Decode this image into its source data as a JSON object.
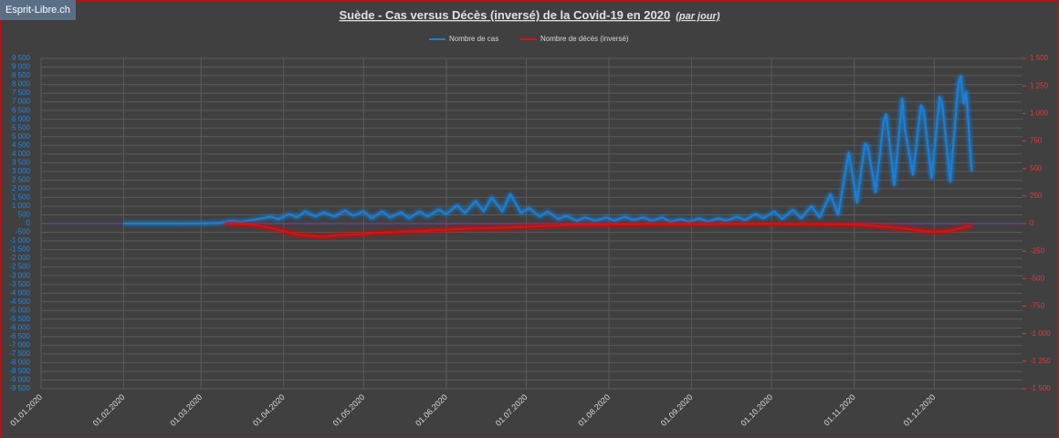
{
  "watermark": "Esprit-Libre.ch",
  "chart_data": {
    "type": "line",
    "title": "Suède - Cas versus Décès (inversé) de la Covid-19 en 2020",
    "subtitle": "(par jour)",
    "grid": true,
    "legend": "top",
    "xlim": [
      "2020-01-01",
      "2020-12-31"
    ],
    "xticks": [
      {
        "value": "2020-01-01",
        "label": "01.01.2020"
      },
      {
        "value": "2020-02-01",
        "label": "01.02.2020"
      },
      {
        "value": "2020-03-01",
        "label": "01.03.2020"
      },
      {
        "value": "2020-04-01",
        "label": "01.04.2020"
      },
      {
        "value": "2020-05-01",
        "label": "01.05.2020"
      },
      {
        "value": "2020-06-01",
        "label": "01.06.2020"
      },
      {
        "value": "2020-07-01",
        "label": "01.07.2020"
      },
      {
        "value": "2020-08-01",
        "label": "01.08.2020"
      },
      {
        "value": "2020-09-01",
        "label": "01.09.2020"
      },
      {
        "value": "2020-10-01",
        "label": "01.10.2020"
      },
      {
        "value": "2020-11-01",
        "label": "01.11.2020"
      },
      {
        "value": "2020-12-01",
        "label": "01.12.2020"
      }
    ],
    "ylim": [
      -9500,
      9500
    ],
    "yticks": [
      {
        "value": -9500,
        "label": "-9 500"
      },
      {
        "value": -9000,
        "label": "-9 000"
      },
      {
        "value": -8500,
        "label": "-8 500"
      },
      {
        "value": -8000,
        "label": "-8 000"
      },
      {
        "value": -7500,
        "label": "-7 500"
      },
      {
        "value": -7000,
        "label": "-7 000"
      },
      {
        "value": -6500,
        "label": "-6 500"
      },
      {
        "value": -6000,
        "label": "-6 000"
      },
      {
        "value": -5500,
        "label": "-5 500"
      },
      {
        "value": -5000,
        "label": "-5 000"
      },
      {
        "value": -4500,
        "label": "-4 500"
      },
      {
        "value": -4000,
        "label": "-4 000"
      },
      {
        "value": -3500,
        "label": "-3 500"
      },
      {
        "value": -3000,
        "label": "-3 000"
      },
      {
        "value": -2500,
        "label": "-2 500"
      },
      {
        "value": -2000,
        "label": "-2 000"
      },
      {
        "value": -1500,
        "label": "-1 500"
      },
      {
        "value": -1000,
        "label": "-1 000"
      },
      -500,
      0,
      500,
      {
        "value": 1000,
        "label": "1 000"
      },
      {
        "value": 1500,
        "label": "1 500"
      },
      {
        "value": 2000,
        "label": "2 000"
      },
      {
        "value": 2500,
        "label": "2 500"
      },
      {
        "value": 3000,
        "label": "3 000"
      },
      {
        "value": 3500,
        "label": "3 500"
      },
      {
        "value": 4000,
        "label": "4 000"
      },
      {
        "value": 4500,
        "label": "4 500"
      },
      {
        "value": 5000,
        "label": "5 000"
      },
      {
        "value": 5500,
        "label": "5 500"
      },
      {
        "value": 6000,
        "label": "6 000"
      },
      {
        "value": 6500,
        "label": "6 500"
      },
      {
        "value": 7000,
        "label": "7 000"
      },
      {
        "value": 7500,
        "label": "7 500"
      },
      {
        "value": 8000,
        "label": "8 000"
      },
      {
        "value": 8500,
        "label": "8 500"
      },
      {
        "value": 9000,
        "label": "9 000"
      },
      {
        "value": 9500,
        "label": "9 500"
      }
    ],
    "y2lim": [
      -1500,
      1500
    ],
    "y2ticks": [
      {
        "value": -1500,
        "label": "-1 500"
      },
      {
        "value": -1250,
        "label": "-1 250"
      },
      {
        "value": -1000,
        "label": "-1 000"
      },
      -750,
      -500,
      -250,
      0,
      250,
      500,
      750,
      {
        "value": 1000,
        "label": "1 000"
      },
      {
        "value": 1250,
        "label": "1 250"
      },
      {
        "value": 1500,
        "label": "1 500"
      }
    ],
    "series": [
      {
        "name": "Nombre de cas",
        "color": "#1a7fd6",
        "x": [
          "2020-02-01",
          "2020-02-20",
          "2020-03-01",
          "2020-03-08",
          "2020-03-12",
          "2020-03-16",
          "2020-03-20",
          "2020-03-24",
          "2020-03-27",
          "2020-03-30",
          "2020-04-03",
          "2020-04-06",
          "2020-04-09",
          "2020-04-13",
          "2020-04-16",
          "2020-04-20",
          "2020-04-24",
          "2020-04-27",
          "2020-05-01",
          "2020-05-04",
          "2020-05-08",
          "2020-05-11",
          "2020-05-15",
          "2020-05-18",
          "2020-05-22",
          "2020-05-25",
          "2020-05-29",
          "2020-06-01",
          "2020-06-05",
          "2020-06-08",
          "2020-06-12",
          "2020-06-15",
          "2020-06-18",
          "2020-06-22",
          "2020-06-25",
          "2020-06-29",
          "2020-07-02",
          "2020-07-06",
          "2020-07-09",
          "2020-07-13",
          "2020-07-16",
          "2020-07-20",
          "2020-07-23",
          "2020-07-27",
          "2020-07-31",
          "2020-08-03",
          "2020-08-07",
          "2020-08-10",
          "2020-08-14",
          "2020-08-17",
          "2020-08-21",
          "2020-08-24",
          "2020-08-28",
          "2020-08-31",
          "2020-09-04",
          "2020-09-07",
          "2020-09-11",
          "2020-09-14",
          "2020-09-18",
          "2020-09-21",
          "2020-09-25",
          "2020-09-28",
          "2020-10-02",
          "2020-10-05",
          "2020-10-09",
          "2020-10-12",
          "2020-10-16",
          "2020-10-19",
          "2020-10-23",
          "2020-10-26",
          "2020-10-29",
          "2020-10-30",
          "2020-11-02",
          "2020-11-05",
          "2020-11-06",
          "2020-11-09",
          "2020-11-12",
          "2020-11-13",
          "2020-11-16",
          "2020-11-19",
          "2020-11-20",
          "2020-11-23",
          "2020-11-26",
          "2020-11-27",
          "2020-11-30",
          "2020-12-03",
          "2020-12-04",
          "2020-12-07",
          "2020-12-10",
          "2020-12-11",
          "2020-12-12",
          "2020-12-13",
          "2020-12-15"
        ],
        "values": [
          0,
          0,
          5,
          40,
          150,
          100,
          200,
          300,
          400,
          250,
          550,
          350,
          700,
          400,
          650,
          400,
          750,
          450,
          700,
          300,
          700,
          350,
          650,
          300,
          700,
          400,
          800,
          550,
          1050,
          600,
          1300,
          700,
          1500,
          700,
          1700,
          600,
          900,
          400,
          700,
          250,
          450,
          150,
          350,
          150,
          350,
          150,
          400,
          200,
          350,
          150,
          350,
          100,
          250,
          100,
          300,
          100,
          300,
          150,
          400,
          200,
          550,
          300,
          700,
          250,
          800,
          300,
          1000,
          350,
          1700,
          500,
          3300,
          4100,
          1200,
          4600,
          4500,
          1800,
          5900,
          6300,
          2200,
          7200,
          5400,
          2800,
          6800,
          6500,
          2600,
          7300,
          6900,
          2400,
          8100,
          8500,
          6900,
          7600,
          3000
        ]
      },
      {
        "name": "Nombre de décès (inversé)",
        "color": "#e01010",
        "axis": "y2",
        "x": [
          "2020-03-10",
          "2020-03-20",
          "2020-03-27",
          "2020-04-01",
          "2020-04-06",
          "2020-04-10",
          "2020-04-15",
          "2020-04-20",
          "2020-04-25",
          "2020-05-01",
          "2020-05-05",
          "2020-05-10",
          "2020-05-15",
          "2020-05-20",
          "2020-05-25",
          "2020-06-01",
          "2020-06-10",
          "2020-06-20",
          "2020-07-01",
          "2020-07-15",
          "2020-08-01",
          "2020-08-15",
          "2020-09-01",
          "2020-09-15",
          "2020-10-01",
          "2020-10-15",
          "2020-11-01",
          "2020-11-10",
          "2020-11-20",
          "2020-11-28",
          "2020-12-03",
          "2020-12-08",
          "2020-12-15"
        ],
        "values": [
          0,
          -10,
          -40,
          -70,
          -100,
          -110,
          -120,
          -110,
          -100,
          -95,
          -85,
          -80,
          -75,
          -70,
          -65,
          -55,
          -45,
          -40,
          -30,
          -15,
          -10,
          -5,
          -3,
          -2,
          -2,
          -3,
          -10,
          -25,
          -45,
          -70,
          -75,
          -60,
          -20
        ]
      }
    ]
  }
}
